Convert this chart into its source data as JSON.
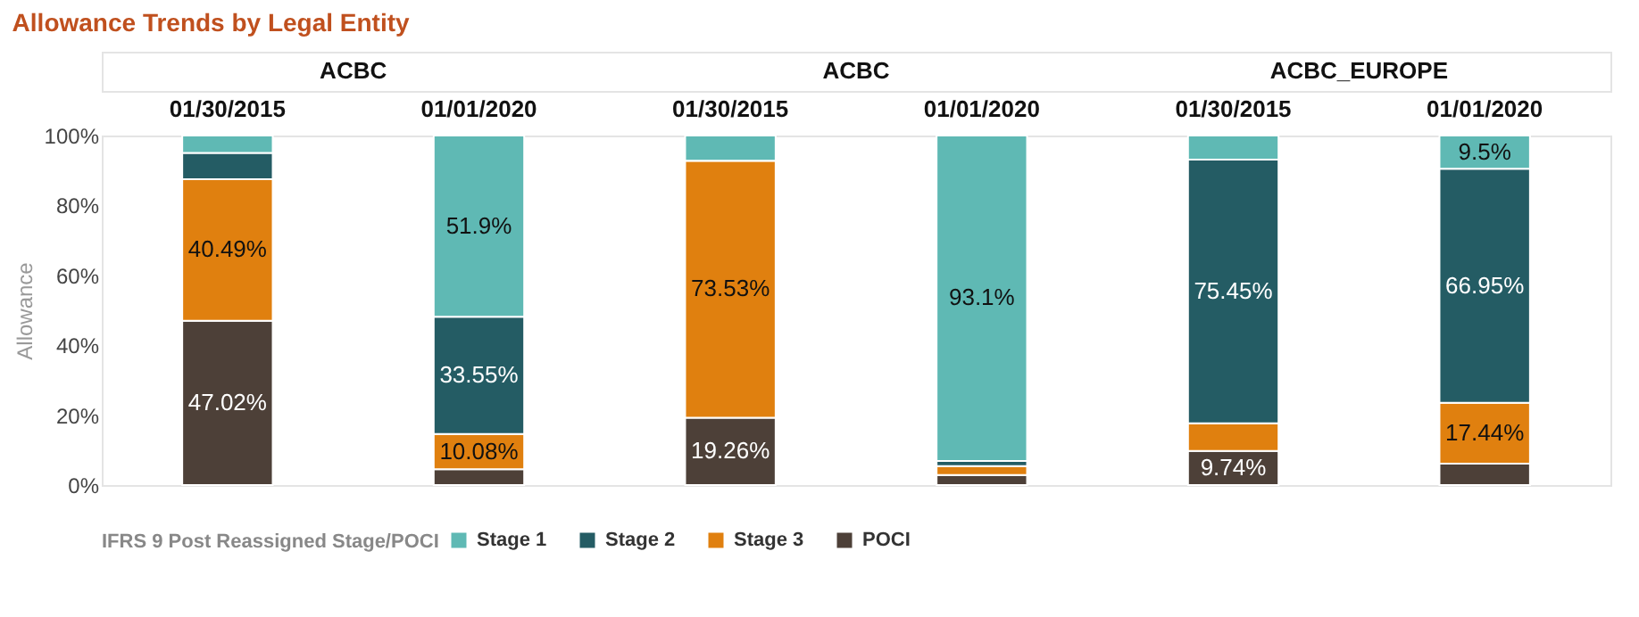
{
  "chart_data": {
    "type": "bar",
    "title": "Allowance Trends by Legal Entity",
    "ylabel": "Allowance",
    "legend_title": "IFRS 9 Post Reassigned Stage/POCI",
    "annotations": [
      "ACBC",
      "ACBC",
      "ACBC_EUROPE"
    ],
    "categories": [
      "01/30/2015",
      "01/01/2020",
      "01/30/2015",
      "01/01/2020",
      "01/30/2015",
      "01/01/2020"
    ],
    "stacked": true,
    "legend": "bottom",
    "grid": false,
    "ylim": [
      0,
      100
    ],
    "yticks": [
      {
        "value": 0,
        "label": "0%"
      },
      {
        "value": 20,
        "label": "20%"
      },
      {
        "value": 40,
        "label": "40%"
      },
      {
        "value": 60,
        "label": "60%"
      },
      {
        "value": 80,
        "label": "80%"
      },
      {
        "value": 100,
        "label": "100%"
      }
    ],
    "series": [
      {
        "name": "POCI",
        "color": "#4d4038",
        "values": [
          47.02,
          4.5,
          19.26,
          2.9,
          9.74,
          6.1
        ],
        "value_labels": [
          "47.02%",
          null,
          "19.26%",
          null,
          "9.74%",
          null
        ]
      },
      {
        "name": "Stage 3",
        "color": "#e0800f",
        "values": [
          40.49,
          10.08,
          73.53,
          2.5,
          7.9,
          17.44
        ],
        "value_labels": [
          "40.49%",
          "10.08%",
          "73.53%",
          null,
          null,
          "17.44%"
        ]
      },
      {
        "name": "Stage 2",
        "color": "#245c64",
        "values": [
          7.5,
          33.55,
          0,
          1.5,
          75.45,
          66.95
        ],
        "value_labels": [
          null,
          "33.55%",
          null,
          null,
          "75.45%",
          "66.95%"
        ]
      },
      {
        "name": "Stage 1",
        "color": "#5fb9b4",
        "values": [
          5.0,
          51.9,
          7.2,
          93.1,
          6.9,
          9.5
        ],
        "value_labels": [
          null,
          "51.9%",
          null,
          "93.1%",
          null,
          "9.5%"
        ]
      }
    ]
  }
}
